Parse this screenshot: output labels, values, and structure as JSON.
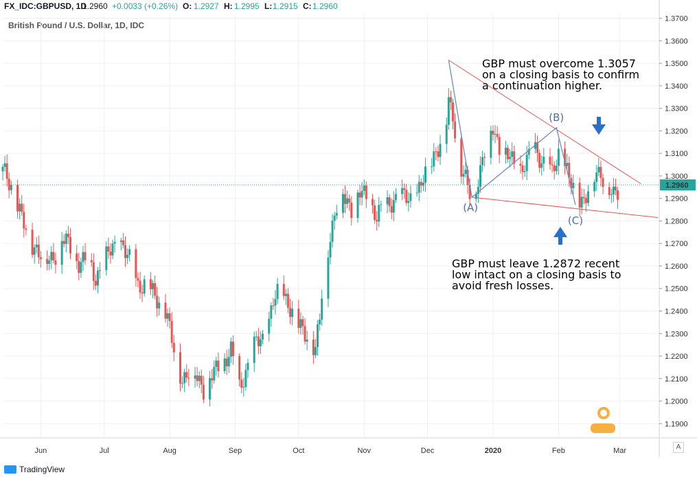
{
  "header": {
    "symbol": "FX_IDC:GBPUSD, 1D",
    "last": "1.2960",
    "change": "+0.0033 (+0.26%)",
    "o_label": "O:",
    "o_value": "1.2927",
    "h_label": "H:",
    "h_value": "1.2995",
    "l_label": "L:",
    "l_value": "1.2915",
    "c_label": "C:",
    "c_value": "1.2960"
  },
  "footer": {
    "brand": "TradingView",
    "auto_button": "A"
  },
  "chart_data": {
    "type": "candlestick",
    "title": "British Pound / U.S. Dollar, 1D, IDC",
    "ylim": [
      1.184,
      1.372
    ],
    "y_ticks": [
      "1.3700",
      "1.3600",
      "1.3500",
      "1.3400",
      "1.3300",
      "1.3200",
      "1.3100",
      "1.3000",
      "1.2900",
      "1.2800",
      "1.2700",
      "1.2600",
      "1.2500",
      "1.2400",
      "1.2300",
      "1.2200",
      "1.2100",
      "1.2000",
      "1.1900"
    ],
    "x_ticks": [
      {
        "label": "Jun",
        "day": 18
      },
      {
        "label": "Jul",
        "day": 48
      },
      {
        "label": "Aug",
        "day": 79
      },
      {
        "label": "Sep",
        "day": 110
      },
      {
        "label": "Oct",
        "day": 140
      },
      {
        "label": "Nov",
        "day": 171
      },
      {
        "label": "Dec",
        "day": 201
      },
      {
        "label": "2020",
        "day": 232
      },
      {
        "label": "Feb",
        "day": 263
      },
      {
        "label": "Mar",
        "day": 292
      }
    ],
    "x_range_days": [
      0,
      310
    ],
    "last_price": 1.296,
    "last_price_label": "1.2960",
    "closes": [
      [
        0,
        1.302
      ],
      [
        4,
        1.296
      ],
      [
        8,
        1.284
      ],
      [
        12,
        1.272
      ],
      [
        16,
        1.268
      ],
      [
        20,
        1.262
      ],
      [
        24,
        1.264
      ],
      [
        28,
        1.272
      ],
      [
        32,
        1.268
      ],
      [
        36,
        1.262
      ],
      [
        40,
        1.262
      ],
      [
        44,
        1.255
      ],
      [
        48,
        1.262
      ],
      [
        52,
        1.268
      ],
      [
        56,
        1.27
      ],
      [
        60,
        1.262
      ],
      [
        64,
        1.252
      ],
      [
        68,
        1.252
      ],
      [
        72,
        1.246
      ],
      [
        76,
        1.244
      ],
      [
        78,
        1.236
      ],
      [
        81,
        1.222
      ],
      [
        85,
        1.21
      ],
      [
        90,
        1.214
      ],
      [
        95,
        1.206
      ],
      [
        100,
        1.212
      ],
      [
        104,
        1.218
      ],
      [
        108,
        1.222
      ],
      [
        112,
        1.206
      ],
      [
        116,
        1.216
      ],
      [
        120,
        1.226
      ],
      [
        124,
        1.228
      ],
      [
        128,
        1.244
      ],
      [
        132,
        1.25
      ],
      [
        136,
        1.242
      ],
      [
        140,
        1.233
      ],
      [
        144,
        1.23
      ],
      [
        148,
        1.222
      ],
      [
        150,
        1.236
      ],
      [
        152,
        1.258
      ],
      [
        155,
        1.274
      ],
      [
        158,
        1.286
      ],
      [
        161,
        1.292
      ],
      [
        165,
        1.286
      ],
      [
        169,
        1.292
      ],
      [
        173,
        1.29
      ],
      [
        177,
        1.282
      ],
      [
        181,
        1.286
      ],
      [
        185,
        1.29
      ],
      [
        189,
        1.29
      ],
      [
        193,
        1.29
      ],
      [
        197,
        1.294
      ],
      [
        201,
        1.302
      ],
      [
        205,
        1.312
      ],
      [
        209,
        1.316
      ],
      [
        211,
        1.332
      ],
      [
        213,
        1.328
      ],
      [
        216,
        1.306
      ],
      [
        218,
        1.3
      ],
      [
        221,
        1.292
      ],
      [
        224,
        1.296
      ],
      [
        228,
        1.31
      ],
      [
        232,
        1.322
      ],
      [
        236,
        1.31
      ],
      [
        240,
        1.308
      ],
      [
        244,
        1.302
      ],
      [
        248,
        1.306
      ],
      [
        252,
        1.312
      ],
      [
        256,
        1.306
      ],
      [
        260,
        1.3
      ],
      [
        264,
        1.314
      ],
      [
        268,
        1.298
      ],
      [
        272,
        1.29
      ],
      [
        275,
        1.29
      ],
      [
        279,
        1.298
      ],
      [
        283,
        1.302
      ],
      [
        286,
        1.296
      ],
      [
        289,
        1.29
      ],
      [
        291,
        1.292
      ],
      [
        293,
        1.296
      ]
    ],
    "annotations": [
      {
        "text": "GBP must overcome 1.3057",
        "line": 1
      },
      {
        "text": "on a closing basis to confirm",
        "line": 2
      },
      {
        "text": "a continuation higher.",
        "line": 3
      },
      {
        "text": "GBP must leave 1.2872 recent",
        "line": 4
      },
      {
        "text": "low intact on a closing basis to",
        "line": 5
      },
      {
        "text": "avoid fresh losses.",
        "line": 6
      }
    ],
    "points": [
      {
        "label": "(A)",
        "day": 222,
        "price": 1.2905
      },
      {
        "label": "(B)",
        "day": 262,
        "price": 1.3214
      },
      {
        "label": "(C)",
        "day": 271,
        "price": 1.2872
      }
    ],
    "peak": {
      "day": 211,
      "price": 1.3514
    },
    "upper_line": [
      {
        "day": 211,
        "price": 1.3514
      },
      {
        "day": 302,
        "price": 1.2965
      }
    ],
    "lower_line": [
      {
        "day": 222,
        "price": 1.2905
      },
      {
        "day": 310,
        "price": 1.2815
      }
    ],
    "colors": {
      "up": "#26a69a",
      "down": "#ef5350",
      "trend": "#ef5350",
      "wave": "#6b8cc4",
      "arrow": "#2a6fc9",
      "last": "#26a69a"
    }
  }
}
